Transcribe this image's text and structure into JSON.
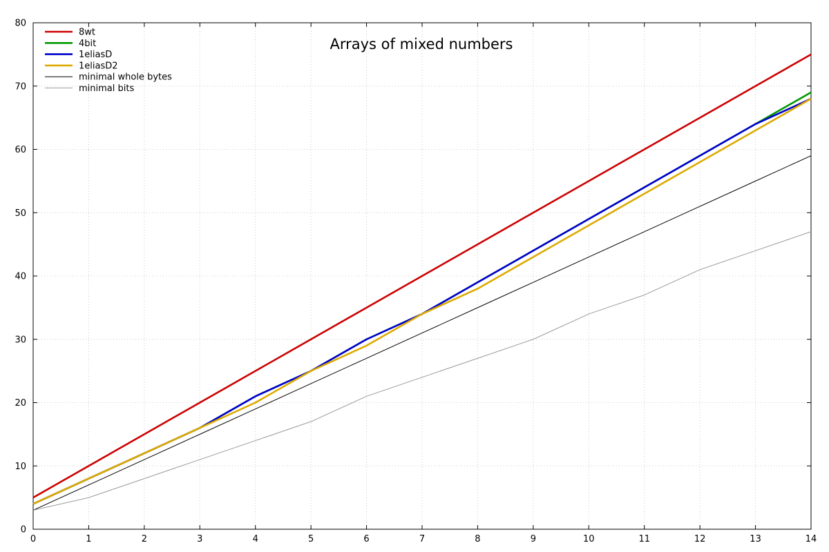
{
  "chart_data": {
    "type": "line",
    "title": "Arrays of mixed numbers",
    "xlabel": "",
    "ylabel": "",
    "xlim": [
      0,
      14
    ],
    "ylim": [
      0,
      80
    ],
    "x_ticks": [
      0,
      1,
      2,
      3,
      4,
      5,
      6,
      7,
      8,
      9,
      10,
      11,
      12,
      13,
      14
    ],
    "y_ticks": [
      0,
      10,
      20,
      30,
      40,
      50,
      60,
      70,
      80
    ],
    "grid": true,
    "legend_position": "top-left",
    "x": [
      0,
      1,
      2,
      3,
      4,
      5,
      6,
      7,
      8,
      9,
      10,
      11,
      12,
      13,
      14
    ],
    "series": [
      {
        "name": "8wt",
        "color": "#cc0000",
        "width": "thick",
        "values": [
          5,
          10,
          15,
          20,
          25,
          30,
          35,
          40,
          45,
          50,
          55,
          60,
          65,
          70,
          75
        ]
      },
      {
        "name": "4bit",
        "color": "#009900",
        "width": "thick",
        "values": [
          4,
          8,
          12,
          16,
          21,
          25,
          30,
          34,
          39,
          44,
          49,
          54,
          59,
          64,
          69
        ]
      },
      {
        "name": "1eliasD",
        "color": "#0000cc",
        "width": "thick",
        "values": [
          4,
          8,
          12,
          16,
          21,
          25,
          30,
          34,
          39,
          44,
          49,
          54,
          59,
          64,
          68
        ]
      },
      {
        "name": "1eliasD2",
        "color": "#ddaa00",
        "width": "thick",
        "values": [
          4,
          8,
          12,
          16,
          20,
          25,
          29,
          34,
          38,
          43,
          48,
          53,
          58,
          63,
          68
        ]
      },
      {
        "name": "minimal whole bytes",
        "color": "#000000",
        "width": "thin",
        "values": [
          3,
          7,
          11,
          15,
          19,
          23,
          27,
          31,
          35,
          39,
          43,
          47,
          51,
          55,
          59
        ]
      },
      {
        "name": "minimal bits",
        "color": "#999999",
        "width": "thin",
        "values": [
          3,
          5,
          8,
          11,
          14,
          17,
          21,
          24,
          27,
          30,
          34,
          37,
          41,
          44,
          47
        ]
      }
    ]
  }
}
